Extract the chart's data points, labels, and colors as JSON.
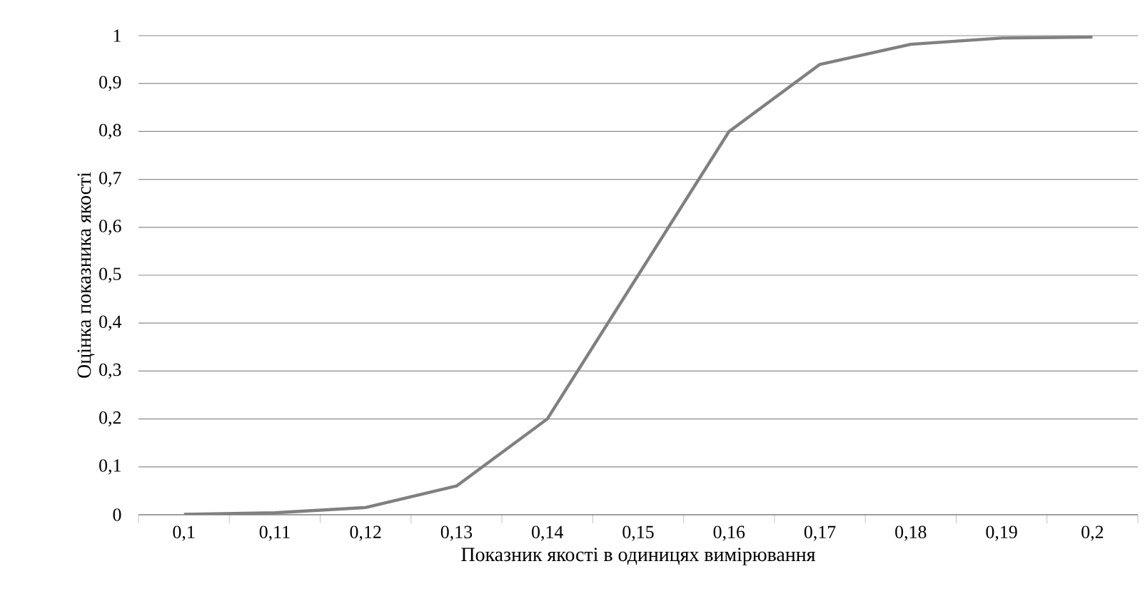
{
  "chart_data": {
    "type": "line",
    "xlabel": "Показник якості в одиницях вимірювання",
    "ylabel": "Оцінка показника якості",
    "categories": [
      "0,1",
      "0,11",
      "0,12",
      "0,13",
      "0,14",
      "0,15",
      "0,16",
      "0,17",
      "0,18",
      "0,19",
      "0,2"
    ],
    "values": [
      0.001,
      0.004,
      0.015,
      0.06,
      0.2,
      0.5,
      0.8,
      0.94,
      0.982,
      0.995,
      0.997
    ],
    "color": "#808080",
    "ylim": [
      0,
      1
    ],
    "yticks": [
      0,
      {
        "value": 0.1,
        "label": "0,1"
      },
      {
        "value": 0.2,
        "label": "0,2"
      },
      {
        "value": 0.3,
        "label": "0,3"
      },
      {
        "value": 0.4,
        "label": "0,4"
      },
      {
        "value": 0.5,
        "label": "0,5"
      },
      {
        "value": 0.6,
        "label": "0,6"
      },
      {
        "value": 0.7,
        "label": "0,7"
      },
      {
        "value": 0.8,
        "label": "0,8"
      },
      {
        "value": 0.9,
        "label": "0,9"
      },
      1
    ],
    "grid": "y",
    "marker": "none",
    "line_style": "solid"
  }
}
